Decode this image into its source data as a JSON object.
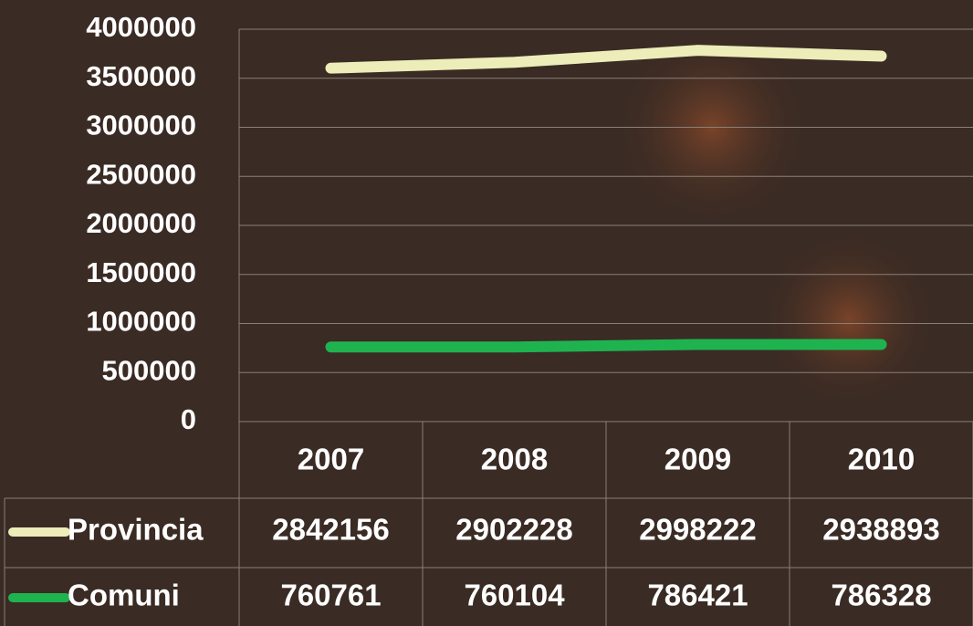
{
  "chart_data": {
    "type": "line",
    "stacked": true,
    "grid": true,
    "categories": [
      "2007",
      "2008",
      "2009",
      "2010"
    ],
    "series": [
      {
        "name": "Provincia",
        "color": "#ecedb8",
        "values": [
          2842156,
          2902228,
          2998222,
          2938893
        ]
      },
      {
        "name": "Comuni",
        "color": "#1fb34f",
        "values": [
          760761,
          760104,
          786421,
          786328
        ]
      }
    ],
    "ylim": [
      0,
      4000000
    ],
    "yticks": [
      0,
      500000,
      1000000,
      1500000,
      2000000,
      2500000,
      3000000,
      3500000,
      4000000
    ]
  }
}
